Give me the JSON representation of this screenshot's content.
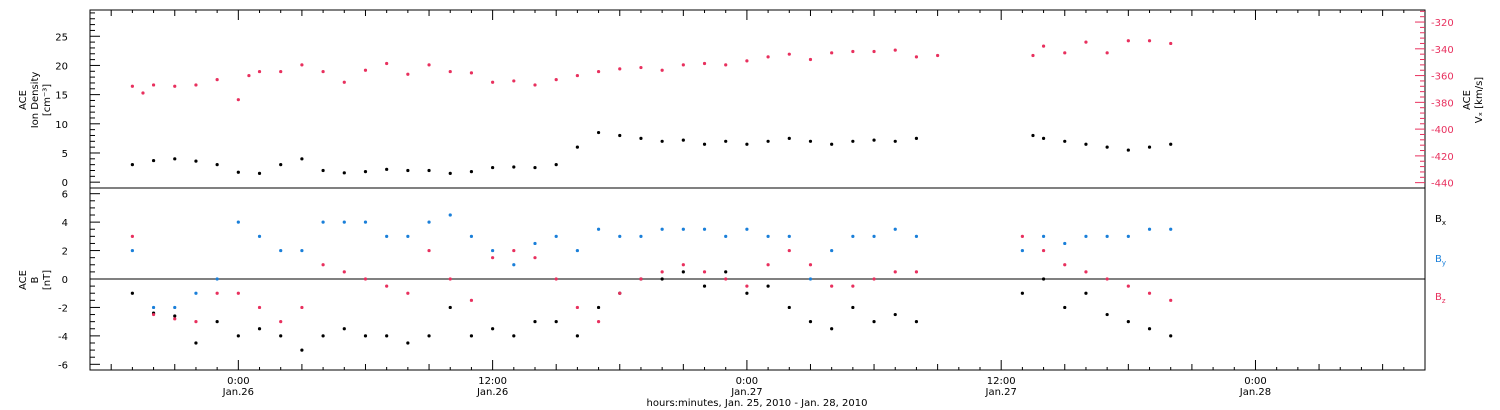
{
  "chart_data": [
    {
      "type": "scatter",
      "ylabel_left": [
        "ACE",
        "Ion Density",
        "[cm⁻³]"
      ],
      "ylabel_right": [
        "ACE",
        "Vₓ [km/s]"
      ],
      "ylim_left": [
        -1,
        29.5
      ],
      "ylim_right": [
        -444,
        -311
      ],
      "yticks_left": [
        0,
        5,
        10,
        15,
        20,
        25
      ],
      "yticks_right": [
        -440,
        -420,
        -400,
        -380,
        -360,
        -340,
        -320
      ],
      "colors": {
        "density": "#000000",
        "vx": "#e8305e"
      },
      "series": [
        {
          "axis": "left",
          "points": [
            [
              -5,
              3
            ],
            [
              -4,
              3.7
            ],
            [
              -3,
              4
            ],
            [
              -2,
              3.6
            ],
            [
              -1,
              3
            ],
            [
              0,
              1.7
            ],
            [
              1,
              1.5
            ],
            [
              2,
              3
            ],
            [
              3,
              4
            ],
            [
              4,
              2
            ],
            [
              5,
              1.6
            ],
            [
              6,
              1.8
            ],
            [
              7,
              2.2
            ],
            [
              8,
              2
            ],
            [
              9,
              2
            ],
            [
              10,
              1.5
            ],
            [
              11,
              1.8
            ],
            [
              12,
              2.5
            ],
            [
              13,
              2.6
            ],
            [
              14,
              2.5
            ],
            [
              15,
              3
            ],
            [
              16,
              6
            ],
            [
              17,
              8.5
            ],
            [
              18,
              8
            ],
            [
              19,
              7.5
            ],
            [
              20,
              7
            ],
            [
              21,
              7.2
            ],
            [
              22,
              6.5
            ],
            [
              23,
              7
            ],
            [
              24,
              6.5
            ],
            [
              25,
              7
            ],
            [
              26,
              7.5
            ],
            [
              27,
              7
            ],
            [
              28,
              6.5
            ],
            [
              29,
              7
            ],
            [
              30,
              7.2
            ],
            [
              31,
              7
            ],
            [
              32,
              7.5
            ],
            [
              37.5,
              8
            ],
            [
              38,
              7.5
            ],
            [
              39,
              7
            ],
            [
              40,
              6.5
            ],
            [
              41,
              6
            ],
            [
              42,
              5.5
            ],
            [
              43,
              6
            ],
            [
              44,
              6.5
            ]
          ]
        },
        {
          "axis": "right",
          "points": [
            [
              -5,
              -368
            ],
            [
              -4.5,
              -373
            ],
            [
              -4,
              -367
            ],
            [
              -3,
              -368
            ],
            [
              -2,
              -367
            ],
            [
              -1,
              -363
            ],
            [
              0,
              -378
            ],
            [
              0.5,
              -360
            ],
            [
              1,
              -357
            ],
            [
              2,
              -357
            ],
            [
              3,
              -352
            ],
            [
              4,
              -357
            ],
            [
              5,
              -365
            ],
            [
              6,
              -356
            ],
            [
              7,
              -351
            ],
            [
              8,
              -359
            ],
            [
              9,
              -352
            ],
            [
              10,
              -357
            ],
            [
              11,
              -358
            ],
            [
              12,
              -365
            ],
            [
              13,
              -364
            ],
            [
              14,
              -367
            ],
            [
              15,
              -363
            ],
            [
              16,
              -360
            ],
            [
              17,
              -357
            ],
            [
              18,
              -355
            ],
            [
              19,
              -354
            ],
            [
              20,
              -356
            ],
            [
              21,
              -352
            ],
            [
              22,
              -351
            ],
            [
              23,
              -352
            ],
            [
              24,
              -349
            ],
            [
              25,
              -346
            ],
            [
              26,
              -344
            ],
            [
              27,
              -348
            ],
            [
              28,
              -343
            ],
            [
              29,
              -342
            ],
            [
              30,
              -342
            ],
            [
              31,
              -341
            ],
            [
              32,
              -346
            ],
            [
              33,
              -345
            ],
            [
              37.5,
              -345
            ],
            [
              38,
              -338
            ],
            [
              39,
              -343
            ],
            [
              40,
              -335
            ],
            [
              41,
              -343
            ],
            [
              42,
              -334
            ],
            [
              43,
              -334
            ],
            [
              44,
              -336
            ]
          ]
        }
      ]
    },
    {
      "type": "scatter",
      "ylabel": [
        "ACE",
        "B",
        "[nT]"
      ],
      "ylim": [
        -6.4,
        6.4
      ],
      "yticks": [
        -6,
        -4,
        -2,
        0,
        2,
        4,
        6
      ],
      "zero_line": true,
      "series": [
        {
          "name": "Bx",
          "color": "#000000",
          "points": [
            [
              -5,
              -1
            ],
            [
              -4,
              -2.4
            ],
            [
              -3,
              -2.6
            ],
            [
              -2,
              -4.5
            ],
            [
              -1,
              -3
            ],
            [
              0,
              -4
            ],
            [
              1,
              -3.5
            ],
            [
              2,
              -4
            ],
            [
              3,
              -5
            ],
            [
              4,
              -4
            ],
            [
              5,
              -3.5
            ],
            [
              6,
              -4
            ],
            [
              7,
              -4
            ],
            [
              8,
              -4.5
            ],
            [
              9,
              -4
            ],
            [
              10,
              -2
            ],
            [
              11,
              -4
            ],
            [
              12,
              -3.5
            ],
            [
              13,
              -4
            ],
            [
              14,
              -3
            ],
            [
              15,
              -3
            ],
            [
              16,
              -4
            ],
            [
              17,
              -2
            ],
            [
              18,
              -1
            ],
            [
              19,
              0
            ],
            [
              20,
              0
            ],
            [
              21,
              0.5
            ],
            [
              22,
              -0.5
            ],
            [
              23,
              0.5
            ],
            [
              24,
              -1
            ],
            [
              25,
              -0.5
            ],
            [
              26,
              -2
            ],
            [
              27,
              -3
            ],
            [
              28,
              -3.5
            ],
            [
              29,
              -2
            ],
            [
              30,
              -3
            ],
            [
              31,
              -2.5
            ],
            [
              32,
              -3
            ],
            [
              37,
              -1
            ],
            [
              38,
              0
            ],
            [
              39,
              -2
            ],
            [
              40,
              -1
            ],
            [
              41,
              -2.5
            ],
            [
              42,
              -3
            ],
            [
              43,
              -3.5
            ],
            [
              44,
              -4
            ]
          ]
        },
        {
          "name": "By",
          "color": "#1a7fd9",
          "points": [
            [
              -5,
              2
            ],
            [
              -4,
              -2
            ],
            [
              -3,
              -2
            ],
            [
              -2,
              -1
            ],
            [
              -1,
              0
            ],
            [
              0,
              4
            ],
            [
              1,
              3
            ],
            [
              2,
              2
            ],
            [
              3,
              2
            ],
            [
              4,
              4
            ],
            [
              5,
              4
            ],
            [
              6,
              4
            ],
            [
              7,
              3
            ],
            [
              8,
              3
            ],
            [
              9,
              4
            ],
            [
              10,
              4.5
            ],
            [
              11,
              3
            ],
            [
              12,
              2
            ],
            [
              13,
              1
            ],
            [
              14,
              2.5
            ],
            [
              15,
              3
            ],
            [
              16,
              2
            ],
            [
              17,
              3.5
            ],
            [
              18,
              3
            ],
            [
              19,
              3
            ],
            [
              20,
              3.5
            ],
            [
              21,
              3.5
            ],
            [
              22,
              3.5
            ],
            [
              23,
              3
            ],
            [
              24,
              3.5
            ],
            [
              25,
              3
            ],
            [
              26,
              3
            ],
            [
              27,
              0
            ],
            [
              28,
              2
            ],
            [
              29,
              3
            ],
            [
              30,
              3
            ],
            [
              31,
              3.5
            ],
            [
              32,
              3
            ],
            [
              37,
              2
            ],
            [
              38,
              3
            ],
            [
              39,
              2.5
            ],
            [
              40,
              3
            ],
            [
              41,
              3
            ],
            [
              42,
              3
            ],
            [
              43,
              3.5
            ],
            [
              44,
              3.5
            ]
          ]
        },
        {
          "name": "Bz",
          "color": "#e8305e",
          "points": [
            [
              -5,
              3
            ],
            [
              -4,
              -2.5
            ],
            [
              -3,
              -2.8
            ],
            [
              -2,
              -3
            ],
            [
              -1,
              -1
            ],
            [
              0,
              -1
            ],
            [
              1,
              -2
            ],
            [
              2,
              -3
            ],
            [
              3,
              -2
            ],
            [
              4,
              1
            ],
            [
              5,
              0.5
            ],
            [
              6,
              0
            ],
            [
              7,
              -0.5
            ],
            [
              8,
              -1
            ],
            [
              9,
              2
            ],
            [
              10,
              0
            ],
            [
              11,
              -1.5
            ],
            [
              12,
              1.5
            ],
            [
              13,
              2
            ],
            [
              14,
              1.5
            ],
            [
              15,
              0
            ],
            [
              16,
              -2
            ],
            [
              17,
              -3
            ],
            [
              18,
              -1
            ],
            [
              19,
              0
            ],
            [
              20,
              0.5
            ],
            [
              21,
              1
            ],
            [
              22,
              0.5
            ],
            [
              23,
              0
            ],
            [
              24,
              -0.5
            ],
            [
              25,
              1
            ],
            [
              26,
              2
            ],
            [
              27,
              1
            ],
            [
              28,
              -0.5
            ],
            [
              29,
              -0.5
            ],
            [
              30,
              0
            ],
            [
              31,
              0.5
            ],
            [
              32,
              0.5
            ],
            [
              37,
              3
            ],
            [
              38,
              2
            ],
            [
              39,
              1
            ],
            [
              40,
              0.5
            ],
            [
              41,
              0
            ],
            [
              42,
              -0.5
            ],
            [
              43,
              -1
            ],
            [
              44,
              -1.5
            ]
          ]
        }
      ],
      "legend": [
        "B",
        "B",
        "B"
      ],
      "legend_subscripts": [
        "x",
        "y",
        "z"
      ],
      "legend_colors": [
        "#000000",
        "#1a7fd9",
        "#e8305e"
      ]
    }
  ],
  "x_axis": {
    "xlim": [
      -7,
      56
    ],
    "major_ticks": [
      {
        "x": 0,
        "time": "0:00",
        "date": "Jan.26"
      },
      {
        "x": 12,
        "time": "12:00",
        "date": "Jan.26"
      },
      {
        "x": 24,
        "time": "0:00",
        "date": "Jan.27"
      },
      {
        "x": 36,
        "time": "12:00",
        "date": "Jan.27"
      },
      {
        "x": 48,
        "time": "0:00",
        "date": "Jan.28"
      }
    ],
    "xlabel": "hours:minutes, Jan. 25, 2010 - Jan. 28, 2010"
  }
}
